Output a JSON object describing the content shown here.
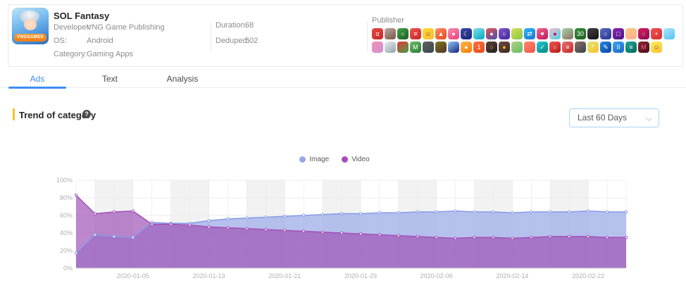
{
  "app_card": {
    "title": "SOL Fantasy",
    "icon_banner": "VNGGAMES",
    "fields": [
      {
        "label": "Developer:",
        "value": "VNG Game Publishing"
      },
      {
        "label": "OS:",
        "value": "Android"
      },
      {
        "label": "Category:",
        "value": "Gaming Apps"
      }
    ],
    "stats": [
      {
        "label": "Duration:",
        "value": "68"
      },
      {
        "label": "Deduped:",
        "value": "502"
      }
    ],
    "publisher_label": "Publisher",
    "publisher_rows": [
      [
        [
          "#e8473f",
          "#c62828",
          "α",
          "#fff"
        ],
        [
          "#bcaaa4",
          "#795548",
          "",
          ""
        ],
        [
          "#43a047",
          "#1b5e20",
          "○",
          "#fff"
        ],
        [
          "#ef5350",
          "#c62828",
          "≡",
          "#fff"
        ],
        [
          "#fdd835",
          "#fbc02d",
          "☺",
          "#6d4c41"
        ],
        [
          "#ff8a65",
          "#e64a19",
          "▲",
          "#fff"
        ],
        [
          "#f48fb1",
          "#ec407a",
          "●",
          "#fff"
        ],
        [
          "#3949ab",
          "#1a237e",
          "☾",
          "#fff176"
        ],
        [
          "#80deea",
          "#00acc1",
          "",
          ""
        ],
        [
          "#ef5350",
          "#3f51b5",
          "●",
          "#fff"
        ],
        [
          "#7e57c2",
          "#4527a0",
          "○",
          "#fff"
        ],
        [
          "#d4e157",
          "#8bc34a",
          "",
          ""
        ],
        [
          "#29b6f6",
          "#1976d2",
          "⇄",
          "#fff"
        ],
        [
          "#f06292",
          "#c2185b",
          "♥",
          "#fff"
        ],
        [
          "#f8bbd0",
          "#4dd0e1",
          "●",
          "#ad1457"
        ],
        [
          "#a5d6a7",
          "#8d6e63",
          "",
          ""
        ],
        [
          "#388e3c",
          "#1b5e20",
          "30",
          "#fff"
        ],
        [
          "#424242",
          "#121212",
          "",
          ""
        ],
        [
          "#5c6bc0",
          "#283593",
          "○",
          "#fff"
        ],
        [
          "#8e24aa",
          "#4a148c",
          "□",
          "#fff"
        ],
        [
          "#ffcc80",
          "#ffab91",
          "",
          ""
        ],
        [
          "#d81b60",
          "#880e4f",
          "○",
          "#f8bbd0"
        ],
        [
          "#ef5350",
          "#d32f2f",
          "+",
          "#fff"
        ],
        [
          "#b3e5fc",
          "#4fc3f7",
          "",
          ""
        ]
      ],
      [
        [
          "#f48fb1",
          "#ce93d8",
          "",
          ""
        ],
        [
          "#eceff1",
          "#90a4ae",
          "",
          ""
        ],
        [
          "#e53935",
          "#43a047",
          "",
          ""
        ],
        [
          "#66bb6a",
          "#2e7d32",
          "M",
          "#fff"
        ],
        [
          "#616161",
          "#37474f",
          "",
          ""
        ],
        [
          "#827717",
          "#4e342e",
          "",
          ""
        ],
        [
          "#90caf9",
          "#1a237e",
          "",
          ""
        ],
        [
          "#ffb74d",
          "#f57c00",
          "●",
          "#fff"
        ],
        [
          "#ff7043",
          "#e64a19",
          "1",
          "#fff"
        ],
        [
          "#5d4037",
          "#212121",
          "○",
          "#ffca28"
        ],
        [
          "#6d4c41",
          "#3e2723",
          "●",
          "#ffb300"
        ],
        [
          "#aed581",
          "#66bb6a",
          "",
          ""
        ],
        [
          "#ff8a65",
          "#ef5350",
          "",
          ""
        ],
        [
          "#26c6da",
          "#00897b",
          "✓",
          "#fff"
        ],
        [
          "#ef5350",
          "#b71c1c",
          "○",
          "#fff"
        ],
        [
          "#e57373",
          "#c62828",
          "≡",
          "#fff"
        ],
        [
          "#8d6e63",
          "#37474f",
          "",
          ""
        ],
        [
          "#dce775",
          "#fbc02d",
          "*",
          "#fff"
        ],
        [
          "#1e88e5",
          "#0d47a1",
          "✎",
          "#fff"
        ],
        [
          "#42a5f5",
          "#1565c0",
          "II",
          "#fff"
        ],
        [
          "#26a69a",
          "#00695c",
          "≡",
          "#fff"
        ],
        [
          "#8e2430",
          "#4a0e14",
          "M",
          "#f06292"
        ],
        [
          "#ffee58",
          "#fbc02d",
          "☺",
          "#6d4c41"
        ]
      ]
    ]
  },
  "tabs": [
    {
      "label": "Ads",
      "active": true
    },
    {
      "label": "Text",
      "active": false
    },
    {
      "label": "Analysis",
      "active": false
    }
  ],
  "section": {
    "title": "Trend of category",
    "help_icon": "question-mark",
    "help_glyph": "?"
  },
  "filter": {
    "selected": "Last 60 Days"
  },
  "colors": {
    "accent_blue": "#3d8ef0",
    "section_bar_yellow": "#fbc02d",
    "band_gray": "#f2f2f2",
    "grid": "#e8e8e8",
    "axis_text": "#b0b0b0"
  },
  "chart_data": {
    "type": "area",
    "stacked": false,
    "title": "Trend of category",
    "xlabel": "",
    "ylabel": "",
    "ylim": [
      0,
      100
    ],
    "grid": true,
    "legend_position": "top-center",
    "y_tick_labels": [
      "0%",
      "20%",
      "40%",
      "60%",
      "80%",
      "100%"
    ],
    "x_ticks": [
      {
        "index": 3,
        "label": "2020-01-05"
      },
      {
        "index": 7,
        "label": "2020-01-13"
      },
      {
        "index": 11,
        "label": "2020-01-21"
      },
      {
        "index": 15,
        "label": "2020-01-29"
      },
      {
        "index": 19,
        "label": "2020-02-06"
      },
      {
        "index": 23,
        "label": "2020-02-14"
      },
      {
        "index": 27,
        "label": "2020-02-22"
      }
    ],
    "series": [
      {
        "name": "Image",
        "color": "#97a7ea",
        "line": "#839ae8",
        "fill": "rgba(164,178,234,0.8)",
        "values": [
          17,
          38,
          36,
          35,
          52,
          51,
          51,
          54,
          56,
          57,
          58,
          59,
          60,
          61,
          62,
          62,
          63,
          63,
          64,
          64,
          65,
          64,
          64,
          63,
          64,
          64,
          64,
          65,
          64,
          64
        ]
      },
      {
        "name": "Video",
        "color": "#a44dba",
        "line": "#a14fb8",
        "fill": "rgba(159,84,182,0.7)",
        "values": [
          83,
          62,
          64,
          65,
          50,
          50,
          49,
          47,
          46,
          45,
          44,
          43,
          42,
          41,
          40,
          39,
          38,
          37,
          36,
          35,
          34,
          35,
          35,
          34,
          35,
          36,
          36,
          36,
          35,
          35
        ]
      }
    ]
  }
}
